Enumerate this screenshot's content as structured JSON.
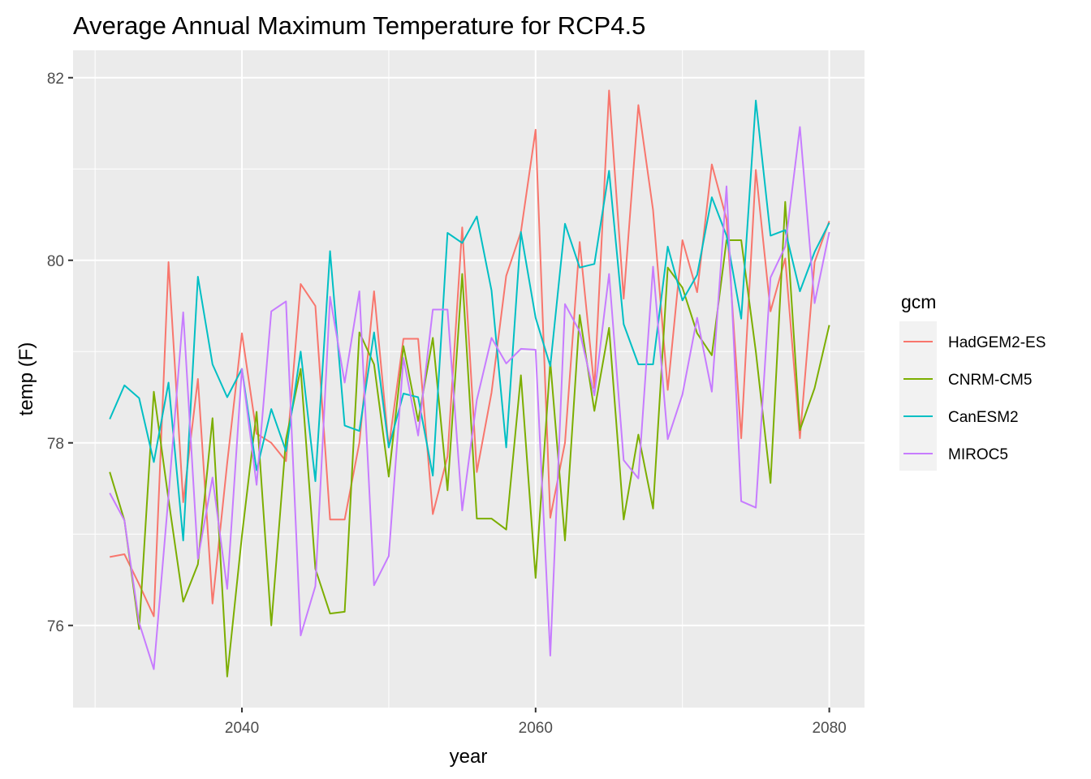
{
  "chart_data": {
    "type": "line",
    "title": "Average Annual Maximum Temperature for RCP4.5",
    "xlabel": "year",
    "ylabel": "temp (F)",
    "xlim": [
      2028.5,
      2082.4
    ],
    "ylim": [
      75.1,
      82.3
    ],
    "x_ticks": [
      2040,
      2060,
      2080
    ],
    "y_ticks": [
      76,
      78,
      80,
      82
    ],
    "x_minor_ticks": [
      2030,
      2050,
      2070
    ],
    "y_minor_ticks": [
      77,
      79,
      81
    ],
    "grid": true,
    "legend_title": "gcm",
    "legend_position": "right",
    "x": [
      2031,
      2032,
      2033,
      2034,
      2035,
      2036,
      2037,
      2038,
      2039,
      2040,
      2041,
      2042,
      2043,
      2044,
      2045,
      2046,
      2047,
      2048,
      2049,
      2050,
      2051,
      2052,
      2053,
      2054,
      2055,
      2056,
      2057,
      2058,
      2059,
      2060,
      2061,
      2062,
      2063,
      2064,
      2065,
      2066,
      2067,
      2068,
      2069,
      2070,
      2071,
      2072,
      2073,
      2074,
      2075,
      2076,
      2077,
      2078,
      2079,
      2080
    ],
    "series": [
      {
        "name": "HadGEM2-ES",
        "color": "#F8766D",
        "values": [
          76.75,
          76.78,
          76.45,
          76.1,
          79.98,
          77.35,
          78.7,
          76.24,
          77.78,
          79.2,
          78.1,
          78.0,
          77.8,
          79.74,
          79.5,
          77.16,
          77.16,
          78.0,
          79.66,
          77.95,
          79.14,
          79.14,
          77.22,
          77.85,
          80.36,
          77.68,
          78.55,
          79.83,
          80.31,
          81.43,
          77.18,
          78.0,
          80.2,
          78.6,
          81.86,
          79.58,
          81.7,
          80.55,
          78.58,
          80.22,
          79.65,
          81.05,
          80.45,
          78.05,
          80.99,
          79.44,
          80.02,
          78.05,
          79.98,
          80.43
        ]
      },
      {
        "name": "CNRM-CM5",
        "color": "#7CAE00",
        "values": [
          77.68,
          77.15,
          75.96,
          78.56,
          77.38,
          76.26,
          76.67,
          78.27,
          75.44,
          76.98,
          78.34,
          76.0,
          78.04,
          78.81,
          76.62,
          76.13,
          76.15,
          79.21,
          78.86,
          77.63,
          79.06,
          78.24,
          79.15,
          77.48,
          79.85,
          77.17,
          77.17,
          77.05,
          78.74,
          76.52,
          78.89,
          76.93,
          79.4,
          78.35,
          79.26,
          77.16,
          78.09,
          77.28,
          79.92,
          79.7,
          79.2,
          78.96,
          80.22,
          80.22,
          79.0,
          77.56,
          80.64,
          78.14,
          78.6,
          79.29
        ]
      },
      {
        "name": "CanESM2",
        "color": "#00BFC4",
        "values": [
          78.26,
          78.63,
          78.49,
          77.79,
          78.66,
          76.93,
          79.82,
          78.86,
          78.5,
          78.81,
          77.7,
          78.37,
          77.91,
          79.0,
          77.58,
          80.1,
          78.19,
          78.13,
          79.21,
          77.95,
          78.54,
          78.5,
          77.64,
          80.3,
          80.19,
          80.48,
          79.67,
          77.95,
          80.31,
          79.37,
          78.84,
          80.4,
          79.92,
          79.96,
          80.98,
          79.3,
          78.86,
          78.86,
          80.15,
          79.56,
          79.84,
          80.69,
          80.27,
          79.36,
          81.75,
          80.27,
          80.33,
          79.66,
          80.09,
          80.41
        ]
      },
      {
        "name": "MIROC5",
        "color": "#C77CFF",
        "values": [
          77.45,
          77.15,
          76.03,
          75.52,
          77.42,
          79.43,
          76.73,
          77.62,
          76.4,
          78.81,
          77.54,
          79.44,
          79.55,
          75.89,
          76.43,
          79.6,
          78.66,
          79.66,
          76.44,
          76.76,
          78.93,
          78.08,
          79.46,
          79.46,
          77.26,
          78.47,
          79.15,
          78.87,
          79.03,
          79.02,
          75.67,
          79.52,
          79.22,
          78.52,
          79.85,
          77.81,
          77.61,
          79.93,
          78.04,
          78.53,
          79.37,
          78.56,
          80.81,
          77.36,
          77.29,
          79.81,
          80.15,
          81.46,
          79.53,
          80.31
        ]
      }
    ]
  }
}
